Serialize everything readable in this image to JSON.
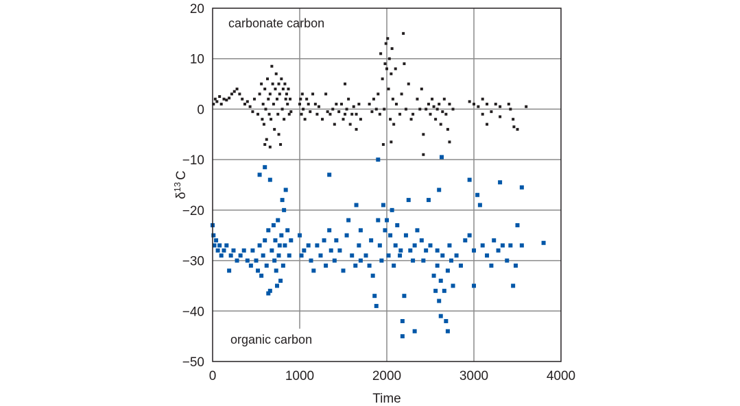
{
  "chart_data": {
    "type": "scatter",
    "title": "",
    "xlabel": "Time",
    "ylabel": "δ13C",
    "ylabel_parts": {
      "symbol": "δ",
      "superscript": "13",
      "element": "C"
    },
    "xlim": [
      0,
      4000
    ],
    "ylim": [
      -50,
      20
    ],
    "x_ticks": [
      0,
      1000,
      2000,
      3000,
      4000
    ],
    "x_tick_labels": [
      "0",
      "1000",
      "2000",
      "3000",
      "4000"
    ],
    "y_ticks": [
      20,
      10,
      0,
      -10,
      -20,
      -30,
      -40,
      -50
    ],
    "y_tick_labels": [
      "20",
      "10",
      "0",
      "−10",
      "−20",
      "−30",
      "−40",
      "−50"
    ],
    "grid": true,
    "annotations": [
      "carbonate carbon",
      "organic carbon"
    ],
    "series": [
      {
        "name": "carbonate carbon",
        "color": "#231f20",
        "points": [
          [
            10,
            1
          ],
          [
            30,
            2
          ],
          [
            50,
            1.5
          ],
          [
            80,
            2.5
          ],
          [
            100,
            1
          ],
          [
            130,
            2
          ],
          [
            160,
            1.8
          ],
          [
            190,
            2.2
          ],
          [
            220,
            3
          ],
          [
            250,
            3.5
          ],
          [
            280,
            4
          ],
          [
            310,
            3
          ],
          [
            340,
            2
          ],
          [
            370,
            1
          ],
          [
            400,
            1.5
          ],
          [
            430,
            0.5
          ],
          [
            460,
            -0.5
          ],
          [
            480,
            2
          ],
          [
            520,
            -1
          ],
          [
            540,
            3
          ],
          [
            560,
            5
          ],
          [
            570,
            -2
          ],
          [
            580,
            1
          ],
          [
            590,
            -3
          ],
          [
            600,
            4
          ],
          [
            610,
            0
          ],
          [
            620,
            -6
          ],
          [
            630,
            6
          ],
          [
            640,
            2
          ],
          [
            650,
            -1
          ],
          [
            660,
            3
          ],
          [
            670,
            -2
          ],
          [
            680,
            8.5
          ],
          [
            690,
            5
          ],
          [
            700,
            1
          ],
          [
            710,
            -4
          ],
          [
            720,
            4
          ],
          [
            730,
            7
          ],
          [
            740,
            2
          ],
          [
            750,
            -1
          ],
          [
            760,
            5
          ],
          [
            770,
            3
          ],
          [
            780,
            -7
          ],
          [
            790,
            6
          ],
          [
            800,
            0
          ],
          [
            810,
            4
          ],
          [
            820,
            -2
          ],
          [
            830,
            5
          ],
          [
            840,
            2
          ],
          [
            850,
            3
          ],
          [
            860,
            1
          ],
          [
            870,
            4
          ],
          [
            880,
            -1
          ],
          [
            890,
            2
          ],
          [
            900,
            -0.5
          ],
          [
            600,
            -7
          ],
          [
            660,
            -7.5
          ],
          [
            760,
            -5
          ],
          [
            1000,
            1
          ],
          [
            1010,
            2
          ],
          [
            1020,
            -1
          ],
          [
            1030,
            3
          ],
          [
            1040,
            0
          ],
          [
            1060,
            -2
          ],
          [
            1080,
            2
          ],
          [
            1100,
            1
          ],
          [
            1120,
            -0.5
          ],
          [
            1150,
            3
          ],
          [
            1180,
            1
          ],
          [
            1200,
            -1
          ],
          [
            1220,
            0.5
          ],
          [
            1260,
            -2
          ],
          [
            1300,
            3
          ],
          [
            1320,
            -0.5
          ],
          [
            1350,
            -1
          ],
          [
            1380,
            0
          ],
          [
            1400,
            -3
          ],
          [
            1420,
            1
          ],
          [
            1450,
            -0.5
          ],
          [
            1480,
            1
          ],
          [
            1500,
            -2
          ],
          [
            1520,
            -1
          ],
          [
            1540,
            0
          ],
          [
            1560,
            2
          ],
          [
            1580,
            -3
          ],
          [
            1600,
            -1
          ],
          [
            1620,
            0.5
          ],
          [
            1650,
            -1
          ],
          [
            1680,
            1
          ],
          [
            1700,
            -2
          ],
          [
            1520,
            5
          ],
          [
            1650,
            -4
          ],
          [
            1800,
            1
          ],
          [
            1830,
            -0.5
          ],
          [
            1850,
            2
          ],
          [
            1880,
            0
          ],
          [
            1900,
            3
          ],
          [
            1920,
            -1
          ],
          [
            1930,
            11
          ],
          [
            1950,
            6
          ],
          [
            1970,
            0
          ],
          [
            1980,
            9
          ],
          [
            1990,
            13
          ],
          [
            2000,
            8
          ],
          [
            2010,
            14
          ],
          [
            2020,
            4
          ],
          [
            2030,
            10
          ],
          [
            2040,
            -2
          ],
          [
            2050,
            7
          ],
          [
            2060,
            12
          ],
          [
            2070,
            2
          ],
          [
            2080,
            -3
          ],
          [
            2100,
            8
          ],
          [
            2110,
            1
          ],
          [
            2150,
            -1
          ],
          [
            2170,
            3
          ],
          [
            2190,
            15
          ],
          [
            2200,
            9
          ],
          [
            2220,
            0
          ],
          [
            2250,
            5
          ],
          [
            2280,
            -2
          ],
          [
            1960,
            -7
          ],
          [
            2050,
            -6.5
          ],
          [
            2300,
            -1
          ],
          [
            2350,
            2
          ],
          [
            2380,
            0
          ],
          [
            2400,
            4
          ],
          [
            2420,
            -5
          ],
          [
            2450,
            0
          ],
          [
            2480,
            1
          ],
          [
            2500,
            -1
          ],
          [
            2520,
            2
          ],
          [
            2540,
            0.5
          ],
          [
            2560,
            -2
          ],
          [
            2580,
            0
          ],
          [
            2600,
            1
          ],
          [
            2620,
            -3
          ],
          [
            2640,
            -0.5
          ],
          [
            2660,
            2
          ],
          [
            2680,
            -1
          ],
          [
            2700,
            -4
          ],
          [
            2720,
            -6.5
          ],
          [
            2420,
            -9
          ],
          [
            2720,
            1
          ],
          [
            2760,
            0
          ],
          [
            2950,
            1.5
          ],
          [
            3000,
            1
          ],
          [
            3050,
            0.5
          ],
          [
            3100,
            2
          ],
          [
            3100,
            -1
          ],
          [
            3150,
            -3
          ],
          [
            3200,
            -0.5
          ],
          [
            3250,
            1
          ],
          [
            3300,
            0.5
          ],
          [
            3300,
            -1.5
          ],
          [
            3400,
            1
          ],
          [
            3420,
            0
          ],
          [
            3450,
            -2
          ],
          [
            3460,
            -3.5
          ],
          [
            3500,
            -4
          ],
          [
            3600,
            0.5
          ],
          [
            3150,
            1
          ]
        ]
      },
      {
        "name": "organic carbon",
        "color": "#0057a8",
        "points": [
          [
            0,
            -23
          ],
          [
            10,
            -25
          ],
          [
            20,
            -27
          ],
          [
            40,
            -26
          ],
          [
            60,
            -28
          ],
          [
            80,
            -27
          ],
          [
            100,
            -29
          ],
          [
            130,
            -28
          ],
          [
            160,
            -27
          ],
          [
            190,
            -32
          ],
          [
            210,
            -29
          ],
          [
            240,
            -28
          ],
          [
            280,
            -30
          ],
          [
            320,
            -29
          ],
          [
            360,
            -28
          ],
          [
            400,
            -30
          ],
          [
            440,
            -31
          ],
          [
            460,
            -28
          ],
          [
            500,
            -30
          ],
          [
            520,
            -32
          ],
          [
            540,
            -27
          ],
          [
            560,
            -33
          ],
          [
            580,
            -29
          ],
          [
            600,
            -26
          ],
          [
            620,
            -31
          ],
          [
            640,
            -24
          ],
          [
            660,
            -36
          ],
          [
            680,
            -28
          ],
          [
            700,
            -23
          ],
          [
            710,
            -30
          ],
          [
            720,
            -26
          ],
          [
            730,
            -32
          ],
          [
            750,
            -22
          ],
          [
            760,
            -29
          ],
          [
            770,
            -27
          ],
          [
            780,
            -34
          ],
          [
            790,
            -25
          ],
          [
            800,
            -18
          ],
          [
            810,
            -31
          ],
          [
            820,
            -20
          ],
          [
            830,
            -27
          ],
          [
            840,
            -16
          ],
          [
            860,
            -24
          ],
          [
            880,
            -29
          ],
          [
            900,
            -26
          ],
          [
            540,
            -13
          ],
          [
            600,
            -11.5
          ],
          [
            660,
            -14
          ],
          [
            640,
            -36.5
          ],
          [
            740,
            -35
          ],
          [
            1000,
            -25
          ],
          [
            1020,
            -29
          ],
          [
            1050,
            -28
          ],
          [
            1100,
            -27
          ],
          [
            1130,
            -30
          ],
          [
            1160,
            -32
          ],
          [
            1200,
            -27
          ],
          [
            1240,
            -29
          ],
          [
            1280,
            -26
          ],
          [
            1300,
            -31
          ],
          [
            1340,
            -24
          ],
          [
            1360,
            -28
          ],
          [
            1400,
            -30
          ],
          [
            1420,
            -26
          ],
          [
            1460,
            -28
          ],
          [
            1500,
            -32
          ],
          [
            1540,
            -25
          ],
          [
            1560,
            -22
          ],
          [
            1600,
            -29
          ],
          [
            1640,
            -31
          ],
          [
            1680,
            -27
          ],
          [
            1700,
            -24
          ],
          [
            1340,
            -13
          ],
          [
            1650,
            -19
          ],
          [
            1700,
            -30
          ],
          [
            1760,
            -29
          ],
          [
            1800,
            -31
          ],
          [
            1820,
            -26
          ],
          [
            1840,
            -33
          ],
          [
            1860,
            -37
          ],
          [
            1880,
            -39
          ],
          [
            1900,
            -22
          ],
          [
            1900,
            -10
          ],
          [
            1920,
            -27
          ],
          [
            1940,
            -30
          ],
          [
            1960,
            -19
          ],
          [
            1980,
            -24
          ],
          [
            2000,
            -22
          ],
          [
            2020,
            -29
          ],
          [
            2040,
            -25
          ],
          [
            2060,
            -20
          ],
          [
            2080,
            -31
          ],
          [
            2100,
            -27
          ],
          [
            2120,
            -23
          ],
          [
            2150,
            -29
          ],
          [
            2160,
            -28
          ],
          [
            2180,
            -45
          ],
          [
            2180,
            -42
          ],
          [
            2200,
            -37
          ],
          [
            2220,
            -25
          ],
          [
            2250,
            -18
          ],
          [
            2270,
            -28
          ],
          [
            2300,
            -30
          ],
          [
            2320,
            -27
          ],
          [
            2350,
            -24
          ],
          [
            2400,
            -26
          ],
          [
            2420,
            -30
          ],
          [
            2450,
            -28
          ],
          [
            2480,
            -18
          ],
          [
            2500,
            -27
          ],
          [
            2540,
            -33
          ],
          [
            2560,
            -36
          ],
          [
            2580,
            -31
          ],
          [
            2600,
            -38
          ],
          [
            2620,
            -34
          ],
          [
            2580,
            -28
          ],
          [
            2600,
            -16
          ],
          [
            2620,
            -41
          ],
          [
            2640,
            -29
          ],
          [
            2660,
            -36
          ],
          [
            2680,
            -42
          ],
          [
            2700,
            -44
          ],
          [
            2700,
            -32
          ],
          [
            2720,
            -27
          ],
          [
            2740,
            -30
          ],
          [
            2760,
            -35
          ],
          [
            2800,
            -29
          ],
          [
            2850,
            -31
          ],
          [
            2900,
            -26
          ],
          [
            2950,
            -25
          ],
          [
            2950,
            -14
          ],
          [
            3000,
            -28
          ],
          [
            3000,
            -35
          ],
          [
            3040,
            -17
          ],
          [
            3070,
            -19
          ],
          [
            3100,
            -27
          ],
          [
            3150,
            -29
          ],
          [
            3200,
            -31
          ],
          [
            3230,
            -26
          ],
          [
            3280,
            -28
          ],
          [
            3300,
            -14.5
          ],
          [
            3330,
            -27
          ],
          [
            3380,
            -30
          ],
          [
            3420,
            -27
          ],
          [
            3450,
            -35
          ],
          [
            3480,
            -31
          ],
          [
            3500,
            -23
          ],
          [
            3550,
            -15.5
          ],
          [
            3550,
            -27
          ],
          [
            3800,
            -26.5
          ],
          [
            2630,
            -9.5
          ],
          [
            2320,
            -44
          ]
        ]
      }
    ]
  }
}
